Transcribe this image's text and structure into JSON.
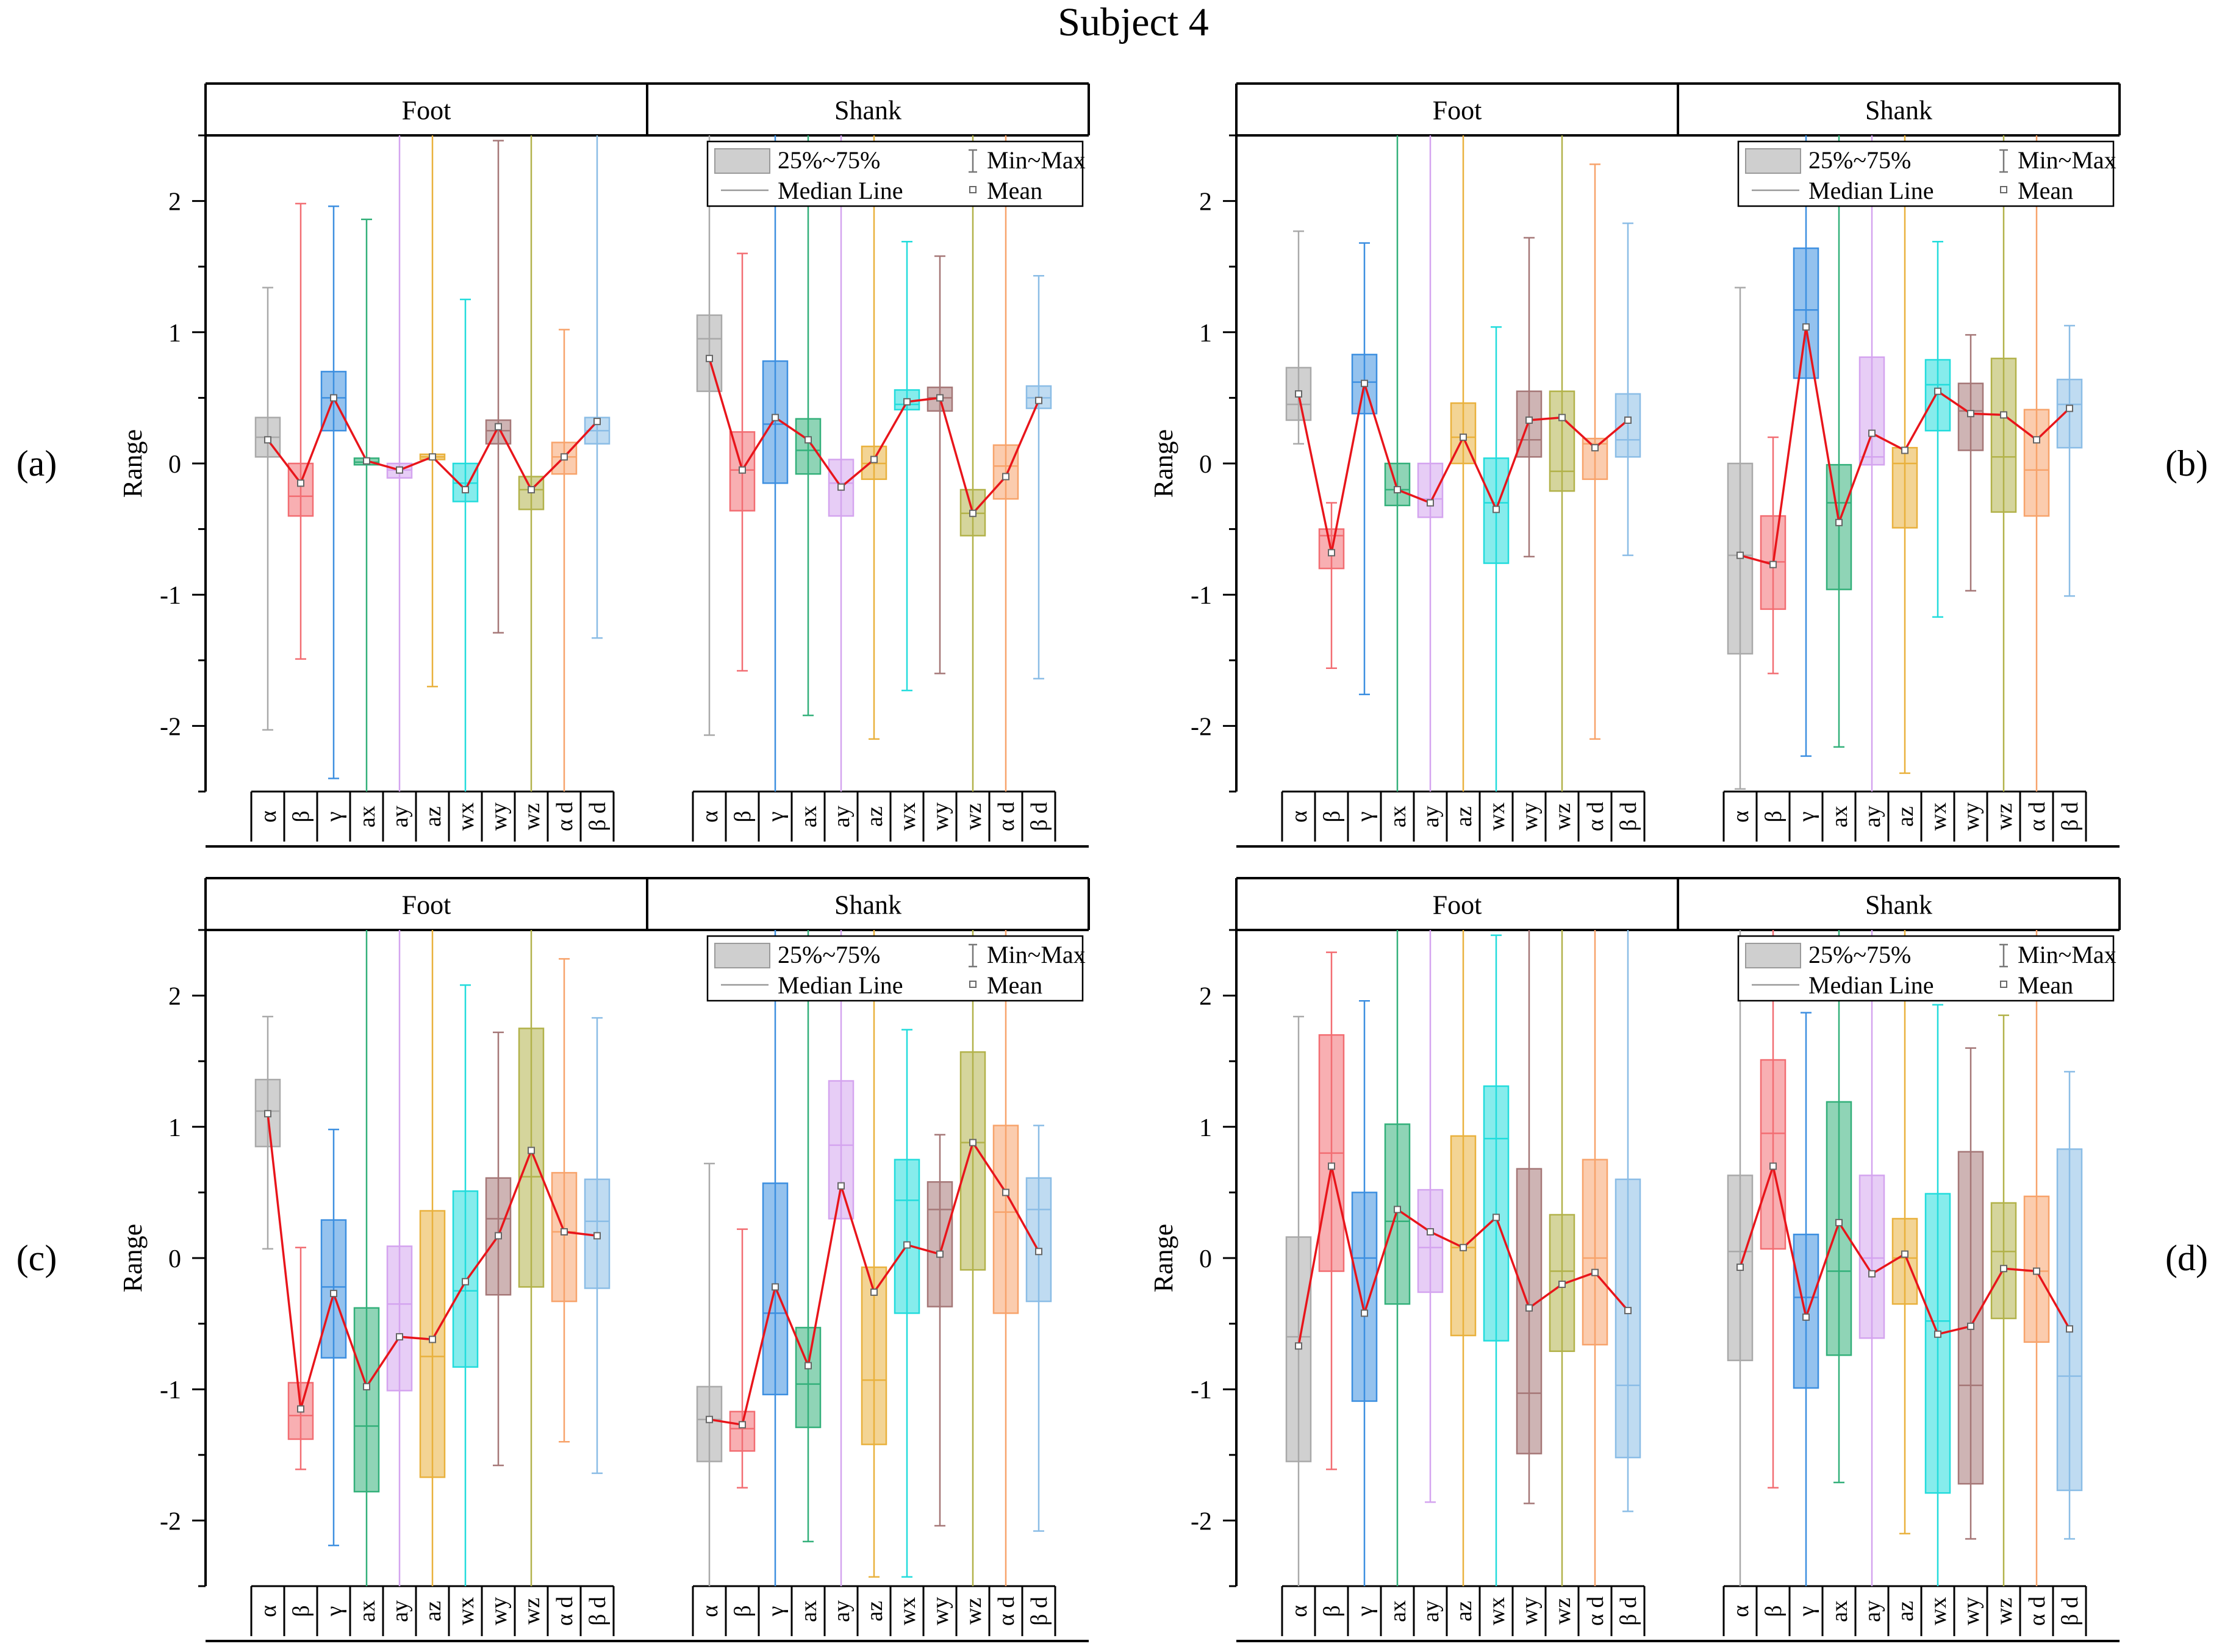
{
  "figure_title": "Subject 4",
  "colors": [
    "#a9a9a9",
    "#f26d72",
    "#3d8fe0",
    "#33b07a",
    "#d4a4ef",
    "#e9b13d",
    "#22dcdc",
    "#a57777",
    "#b2b24a",
    "#f7a36b",
    "#8bbde6"
  ],
  "chart_data": [
    {
      "type": "box",
      "panel_label": "(a)",
      "ylabel": "Range",
      "ylim": [
        -2.5,
        2.5
      ],
      "yticks": [
        -2,
        -1,
        0,
        1,
        2
      ],
      "groups": [
        "Foot",
        "Shank"
      ],
      "categories": [
        "α",
        "β",
        "γ",
        "ax",
        "ay",
        "az",
        "wx",
        "wy",
        "wz",
        "α d",
        "β d"
      ],
      "legend": {
        "box": "25%~75%",
        "whisker": "Min~Max",
        "median": "Median Line",
        "mean": "Mean",
        "position": "top-right"
      },
      "series": [
        {
          "name": "Foot",
          "q1": [
            0.05,
            -0.4,
            0.25,
            -0.01,
            -0.11,
            0.03,
            -0.29,
            0.15,
            -0.35,
            -0.08,
            0.15
          ],
          "q3": [
            0.35,
            0.0,
            0.7,
            0.04,
            0.0,
            0.07,
            0.0,
            0.33,
            -0.1,
            0.16,
            0.35
          ],
          "median": [
            0.2,
            -0.25,
            0.5,
            0.01,
            -0.05,
            0.05,
            -0.15,
            0.25,
            -0.2,
            0.05,
            0.25
          ],
          "mean": [
            0.18,
            -0.15,
            0.5,
            0.02,
            -0.05,
            0.05,
            -0.2,
            0.28,
            -0.2,
            0.05,
            0.32
          ],
          "min": [
            -2.03,
            -1.49,
            -2.4,
            -2.5,
            -2.5,
            -1.7,
            -2.5,
            -1.29,
            -2.5,
            -2.5,
            -1.33
          ],
          "max": [
            1.34,
            1.98,
            1.96,
            1.86,
            2.5,
            2.5,
            1.25,
            2.46,
            2.5,
            1.02,
            2.5
          ]
        },
        {
          "name": "Shank",
          "q1": [
            0.55,
            -0.36,
            -0.15,
            -0.08,
            -0.4,
            -0.12,
            0.41,
            0.4,
            -0.55,
            -0.27,
            0.42
          ],
          "q3": [
            1.13,
            0.24,
            0.78,
            0.34,
            0.03,
            0.13,
            0.56,
            0.58,
            -0.2,
            0.14,
            0.59
          ],
          "median": [
            0.95,
            -0.05,
            0.3,
            0.1,
            -0.15,
            0.0,
            0.45,
            0.5,
            -0.38,
            -0.02,
            0.5
          ],
          "mean": [
            0.8,
            -0.05,
            0.35,
            0.18,
            -0.18,
            0.03,
            0.47,
            0.5,
            -0.38,
            -0.1,
            0.48
          ],
          "min": [
            -2.07,
            -1.58,
            -2.5,
            -1.92,
            -2.5,
            -2.1,
            -1.73,
            -1.6,
            -2.5,
            -2.5,
            -1.64
          ],
          "max": [
            2.5,
            1.6,
            2.5,
            2.5,
            2.5,
            2.5,
            1.69,
            1.58,
            2.5,
            2.5,
            1.43
          ]
        }
      ]
    },
    {
      "type": "box",
      "panel_label": "(b)",
      "ylabel": "Range",
      "ylim": [
        -2.5,
        2.5
      ],
      "yticks": [
        -2,
        -1,
        0,
        1,
        2
      ],
      "groups": [
        "Foot",
        "Shank"
      ],
      "categories": [
        "α",
        "β",
        "γ",
        "ax",
        "ay",
        "az",
        "wx",
        "wy",
        "wz",
        "α d",
        "β d"
      ],
      "legend": {
        "box": "25%~75%",
        "whisker": "Min~Max",
        "median": "Median Line",
        "mean": "Mean",
        "position": "top-right"
      },
      "series": [
        {
          "name": "Foot",
          "q1": [
            0.33,
            -0.8,
            0.38,
            -0.32,
            -0.41,
            0.0,
            -0.76,
            0.05,
            -0.21,
            -0.12,
            0.05
          ],
          "q3": [
            0.73,
            -0.5,
            0.83,
            0.0,
            0.0,
            0.46,
            0.04,
            0.55,
            0.55,
            0.19,
            0.53
          ],
          "median": [
            0.45,
            -0.55,
            0.62,
            -0.2,
            -0.27,
            0.2,
            -0.3,
            0.18,
            -0.06,
            0.15,
            0.18
          ],
          "mean": [
            0.53,
            -0.68,
            0.61,
            -0.2,
            -0.3,
            0.2,
            -0.35,
            0.33,
            0.35,
            0.12,
            0.33
          ],
          "min": [
            0.15,
            -1.56,
            -1.76,
            -2.5,
            -2.5,
            -2.5,
            -2.5,
            -0.71,
            -2.5,
            -2.1,
            -0.7
          ],
          "max": [
            1.77,
            -0.3,
            1.68,
            2.5,
            2.5,
            2.5,
            1.04,
            1.72,
            2.5,
            2.28,
            1.83
          ]
        },
        {
          "name": "Shank",
          "q1": [
            -1.45,
            -1.11,
            0.65,
            -0.96,
            -0.01,
            -0.49,
            0.25,
            0.1,
            -0.37,
            -0.4,
            0.12
          ],
          "q3": [
            0.0,
            -0.4,
            1.64,
            -0.01,
            0.81,
            0.12,
            0.79,
            0.61,
            0.8,
            0.41,
            0.64
          ],
          "median": [
            -0.7,
            -0.75,
            1.17,
            -0.3,
            0.05,
            0.0,
            0.6,
            0.4,
            0.05,
            -0.05,
            0.45
          ],
          "mean": [
            -0.7,
            -0.77,
            1.04,
            -0.45,
            0.23,
            0.1,
            0.55,
            0.38,
            0.37,
            0.18,
            0.42
          ],
          "min": [
            -2.48,
            -1.6,
            -2.23,
            -2.16,
            -2.5,
            -2.36,
            -1.17,
            -0.97,
            -2.5,
            -2.5,
            -1.01
          ],
          "max": [
            1.34,
            0.2,
            2.5,
            2.5,
            2.5,
            2.5,
            1.69,
            0.98,
            2.5,
            2.5,
            1.05
          ]
        }
      ]
    },
    {
      "type": "box",
      "panel_label": "(c)",
      "ylabel": "Range",
      "ylim": [
        -2.5,
        2.5
      ],
      "yticks": [
        -2,
        -1,
        0,
        1,
        2
      ],
      "groups": [
        "Foot",
        "Shank"
      ],
      "categories": [
        "α",
        "β",
        "γ",
        "ax",
        "ay",
        "az",
        "wx",
        "wy",
        "wz",
        "α d",
        "β d"
      ],
      "legend": {
        "box": "25%~75%",
        "whisker": "Min~Max",
        "median": "Median Line",
        "mean": "Mean",
        "position": "top-right"
      },
      "series": [
        {
          "name": "Foot",
          "q1": [
            0.85,
            -1.38,
            -0.76,
            -1.78,
            -1.01,
            -1.67,
            -0.83,
            -0.28,
            -0.22,
            -0.33,
            -0.23
          ],
          "q3": [
            1.36,
            -0.95,
            0.29,
            -0.38,
            0.09,
            0.36,
            0.51,
            0.61,
            1.75,
            0.65,
            0.6
          ],
          "median": [
            1.12,
            -1.2,
            -0.22,
            -1.28,
            -0.35,
            -0.75,
            -0.25,
            0.3,
            0.62,
            0.2,
            0.28
          ],
          "mean": [
            1.1,
            -1.15,
            -0.27,
            -0.98,
            -0.6,
            -0.62,
            -0.18,
            0.17,
            0.82,
            0.2,
            0.17
          ],
          "min": [
            0.07,
            -1.61,
            -2.19,
            -2.5,
            -2.5,
            -2.5,
            -2.5,
            -1.58,
            -2.5,
            -1.4,
            -1.64
          ],
          "max": [
            1.84,
            0.08,
            0.98,
            2.5,
            2.5,
            2.5,
            2.08,
            1.72,
            2.5,
            2.28,
            1.83
          ]
        },
        {
          "name": "Shank",
          "q1": [
            -1.55,
            -1.47,
            -1.04,
            -1.29,
            0.3,
            -1.42,
            -0.42,
            -0.37,
            -0.09,
            -0.42,
            -0.33
          ],
          "q3": [
            -0.98,
            -1.17,
            0.57,
            -0.53,
            1.35,
            -0.07,
            0.75,
            0.58,
            1.57,
            1.01,
            0.61
          ],
          "median": [
            -1.23,
            -1.3,
            -0.42,
            -0.96,
            0.86,
            -0.93,
            0.44,
            0.37,
            0.88,
            0.35,
            0.37
          ],
          "mean": [
            -1.23,
            -1.27,
            -0.22,
            -0.82,
            0.55,
            -0.26,
            0.1,
            0.03,
            0.88,
            0.5,
            0.05
          ],
          "min": [
            -2.5,
            -1.75,
            -2.5,
            -2.16,
            -2.5,
            -2.43,
            -2.43,
            -2.04,
            -2.5,
            -2.5,
            -2.08
          ],
          "max": [
            0.72,
            0.22,
            2.5,
            2.5,
            2.5,
            2.5,
            1.74,
            0.94,
            2.5,
            2.5,
            1.01
          ]
        }
      ]
    },
    {
      "type": "box",
      "panel_label": "(d)",
      "ylabel": "Range",
      "ylim": [
        -2.5,
        2.5
      ],
      "yticks": [
        -2,
        -1,
        0,
        1,
        2
      ],
      "groups": [
        "Foot",
        "Shank"
      ],
      "categories": [
        "α",
        "β",
        "γ",
        "ax",
        "ay",
        "az",
        "wx",
        "wy",
        "wz",
        "α d",
        "β d"
      ],
      "legend": {
        "box": "25%~75%",
        "whisker": "Min~Max",
        "median": "Median Line",
        "mean": "Mean",
        "position": "top-right"
      },
      "series": [
        {
          "name": "Foot",
          "q1": [
            -1.55,
            -0.1,
            -1.09,
            -0.35,
            -0.26,
            -0.59,
            -0.63,
            -1.49,
            -0.71,
            -0.66,
            -1.52
          ],
          "q3": [
            0.16,
            1.7,
            0.5,
            1.02,
            0.52,
            0.93,
            1.31,
            0.68,
            0.33,
            0.75,
            0.6
          ],
          "median": [
            -0.6,
            0.8,
            0.0,
            0.28,
            0.08,
            0.08,
            0.91,
            -1.03,
            -0.1,
            0.0,
            -0.97
          ],
          "mean": [
            -0.67,
            0.7,
            -0.42,
            0.37,
            0.2,
            0.08,
            0.31,
            -0.38,
            -0.2,
            -0.11,
            -0.4
          ],
          "min": [
            -2.5,
            -1.61,
            -2.5,
            -2.5,
            -1.86,
            -2.5,
            -2.5,
            -1.87,
            -2.5,
            -2.5,
            -1.93
          ],
          "max": [
            1.84,
            2.33,
            1.96,
            2.5,
            2.5,
            2.5,
            2.46,
            2.5,
            2.5,
            2.5,
            2.5
          ]
        },
        {
          "name": "Shank",
          "q1": [
            -0.78,
            0.07,
            -0.99,
            -0.74,
            -0.61,
            -0.35,
            -1.79,
            -1.72,
            -0.46,
            -0.64,
            -1.77
          ],
          "q3": [
            0.63,
            1.51,
            0.18,
            1.19,
            0.63,
            0.3,
            0.49,
            0.81,
            0.42,
            0.47,
            0.83
          ],
          "median": [
            0.05,
            0.95,
            -0.3,
            -0.1,
            0.0,
            0.0,
            -0.48,
            -0.97,
            0.05,
            -0.1,
            -0.9
          ],
          "mean": [
            -0.07,
            0.7,
            -0.45,
            0.27,
            -0.12,
            0.03,
            -0.58,
            -0.52,
            -0.08,
            -0.1,
            -0.54
          ],
          "min": [
            -2.5,
            -1.75,
            -2.5,
            -1.71,
            -2.5,
            -2.1,
            -2.5,
            -2.14,
            -2.5,
            -2.5,
            -2.14
          ],
          "max": [
            2.5,
            2.5,
            1.87,
            2.5,
            2.5,
            2.5,
            1.93,
            1.6,
            1.85,
            2.5,
            1.42
          ]
        }
      ]
    }
  ]
}
